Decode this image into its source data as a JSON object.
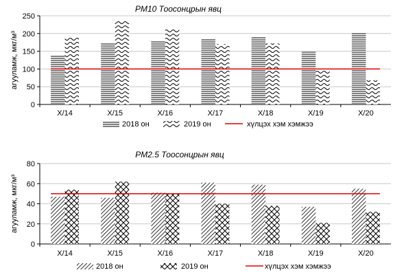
{
  "chart_data": [
    {
      "type": "bar",
      "title": "PM10 Тоосонцрын явц",
      "ylabel": "агууламж, мкг/м³",
      "xlabel": "",
      "categories": [
        "X/14",
        "X/15",
        "X/16",
        "X/17",
        "X/18",
        "X/19",
        "X/20"
      ],
      "series": [
        {
          "name": "2018 он",
          "values": [
            137,
            172,
            180,
            187,
            190,
            148,
            203
          ]
        },
        {
          "name": "2019 он",
          "values": [
            191,
            237,
            213,
            170,
            172,
            99,
            68
          ]
        }
      ],
      "reference_line": {
        "name": "хүлцэх хэм хэмжээ",
        "value": 100,
        "color": "#e00000"
      },
      "ylim": [
        0,
        250
      ],
      "yticks": [
        0,
        50,
        100,
        150,
        200,
        250
      ],
      "grid": "horizontal",
      "legend": "bottom"
    },
    {
      "type": "bar",
      "title": "PM2.5 Тоосонцрын явц",
      "ylabel": "агууламж, мкг/м³",
      "xlabel": "",
      "categories": [
        "X/14",
        "X/15",
        "X/16",
        "X/17",
        "X/18",
        "X/19",
        "X/20"
      ],
      "series": [
        {
          "name": "2018 он",
          "values": [
            47,
            46,
            51,
            61,
            59,
            37,
            55
          ]
        },
        {
          "name": "2019 он",
          "values": [
            54,
            62,
            50,
            40,
            38,
            21,
            32
          ]
        }
      ],
      "reference_line": {
        "name": "хүлцэх хэм хэмжээ",
        "value": 50,
        "color": "#e00000"
      },
      "ylim": [
        0,
        80
      ],
      "yticks": [
        0,
        20,
        40,
        60,
        80
      ],
      "grid": "horizontal",
      "legend": "bottom"
    }
  ]
}
